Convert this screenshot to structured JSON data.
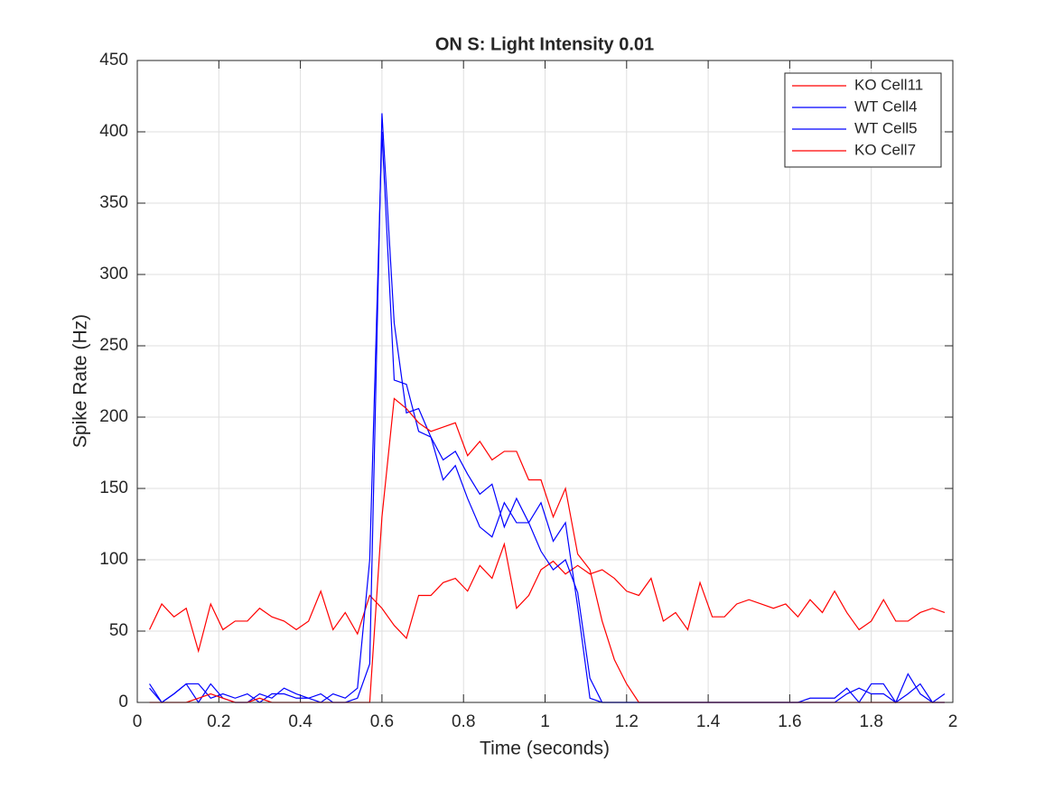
{
  "chart_data": {
    "type": "line",
    "title": "ON S: Light Intensity 0.01",
    "x_label": "Time (seconds)",
    "y_label": "Spike Rate (Hz)",
    "x": [
      0.03,
      0.06,
      0.09,
      0.12,
      0.15,
      0.18,
      0.21,
      0.24,
      0.27,
      0.3,
      0.33,
      0.36,
      0.39,
      0.42,
      0.45,
      0.48,
      0.51,
      0.54,
      0.57,
      0.6,
      0.63,
      0.66,
      0.69,
      0.72,
      0.75,
      0.78,
      0.81,
      0.84,
      0.87,
      0.9,
      0.93,
      0.96,
      0.99,
      1.02,
      1.05,
      1.08,
      1.11,
      1.14,
      1.17,
      1.2,
      1.23,
      1.26,
      1.29,
      1.32,
      1.35,
      1.38,
      1.41,
      1.44,
      1.47,
      1.5,
      1.53,
      1.56,
      1.59,
      1.62,
      1.65,
      1.68,
      1.71,
      1.74,
      1.77,
      1.8,
      1.83,
      1.86,
      1.89,
      1.92,
      1.95,
      1.98
    ],
    "series": [
      {
        "name": "KO Cell11",
        "color": "#ff0000",
        "values": [
          51,
          69,
          60,
          66,
          36,
          69,
          51,
          57,
          57,
          66,
          60,
          57,
          51,
          57,
          78,
          51,
          63,
          48,
          75,
          66,
          54,
          45,
          75,
          75,
          84,
          87,
          78,
          96,
          87,
          111,
          66,
          75,
          93,
          99,
          90,
          96,
          90,
          93,
          87,
          78,
          75,
          87,
          57,
          63,
          51,
          84,
          60,
          60,
          69,
          72,
          69,
          66,
          69,
          60,
          72,
          63,
          78,
          63,
          51,
          57,
          72,
          57,
          57,
          63,
          66,
          63
        ]
      },
      {
        "name": "WT Cell4",
        "color": "#0000ff",
        "values": [
          13,
          0,
          6,
          13,
          13,
          3,
          6,
          3,
          6,
          0,
          6,
          6,
          3,
          3,
          6,
          0,
          0,
          3,
          27,
          413,
          266,
          203,
          206,
          186,
          156,
          166,
          143,
          123,
          116,
          140,
          126,
          126,
          140,
          113,
          126,
          67,
          3,
          0,
          0,
          0,
          0,
          0,
          0,
          0,
          0,
          0,
          0,
          0,
          0,
          0,
          0,
          0,
          0,
          0,
          3,
          3,
          3,
          10,
          0,
          13,
          13,
          0,
          20,
          6,
          0,
          6
        ]
      },
      {
        "name": "WT Cell5",
        "color": "#0000ff",
        "values": [
          10,
          0,
          6,
          13,
          0,
          13,
          3,
          0,
          0,
          6,
          3,
          10,
          6,
          3,
          0,
          6,
          3,
          10,
          100,
          400,
          226,
          223,
          190,
          186,
          170,
          176,
          160,
          146,
          153,
          123,
          143,
          126,
          106,
          93,
          100,
          77,
          17,
          0,
          0,
          0,
          0,
          0,
          0,
          0,
          0,
          0,
          0,
          0,
          0,
          0,
          0,
          0,
          0,
          0,
          0,
          0,
          0,
          6,
          10,
          6,
          6,
          0,
          6,
          13,
          0,
          0
        ]
      },
      {
        "name": "KO Cell7",
        "color": "#ff0000",
        "values": [
          0,
          0,
          0,
          0,
          3,
          6,
          3,
          0,
          0,
          3,
          0,
          0,
          0,
          0,
          0,
          0,
          0,
          0,
          0,
          130,
          213,
          206,
          196,
          190,
          193,
          196,
          173,
          183,
          170,
          176,
          176,
          156,
          156,
          130,
          150,
          104,
          93,
          57,
          30,
          13,
          0,
          0,
          0,
          0,
          0,
          0,
          0,
          0,
          0,
          0,
          0,
          0,
          0,
          0,
          0,
          0,
          0,
          0,
          0,
          0,
          0,
          0,
          0,
          0,
          0,
          0
        ]
      }
    ],
    "xlim": [
      0,
      2
    ],
    "xticks": [
      0,
      0.2,
      0.4,
      0.6,
      0.8,
      1,
      1.2,
      1.4,
      1.6,
      1.8,
      2
    ],
    "ylim": [
      0,
      450
    ],
    "yticks": [
      0,
      50,
      100,
      150,
      200,
      250,
      300,
      350,
      400,
      450
    ],
    "grid": true,
    "legend": "top-right"
  }
}
